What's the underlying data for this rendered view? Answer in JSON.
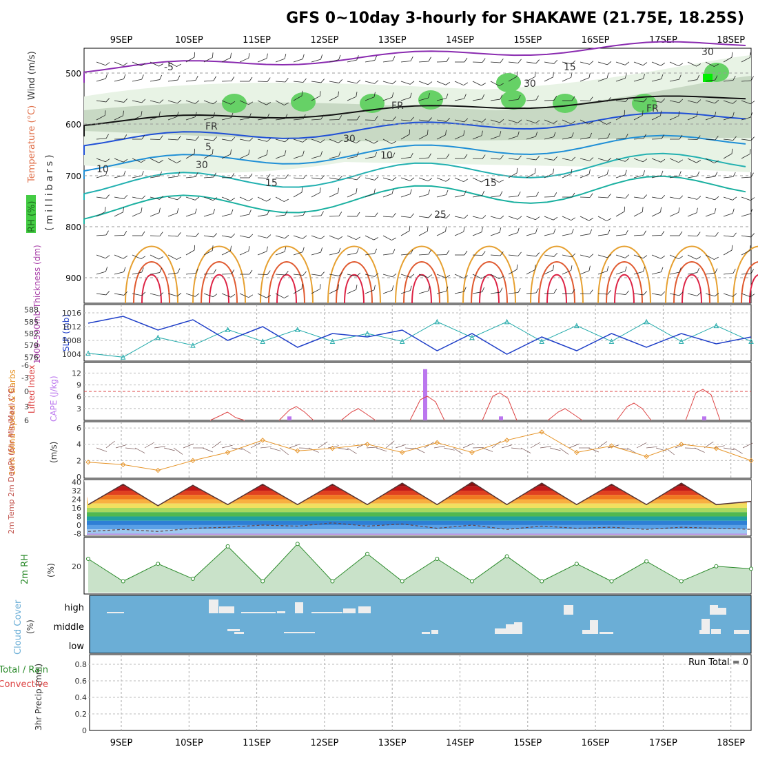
{
  "title": "GFS 0~10day 3-hourly for SHAKAWE (21.75E, 18.25S)",
  "days": [
    "9SEP",
    "10SEP",
    "11SEP",
    "12SEP",
    "13SEP",
    "14SEP",
    "15SEP",
    "16SEP",
    "17SEP",
    "18SEP"
  ],
  "colors": {
    "frame": "#000000",
    "grid": "#9a9a9a",
    "rh_green": "#44cc44",
    "rh_dark": "#888888",
    "purple": "#8a2bb0",
    "blue": "#1f4fd6",
    "cyan": "#1ab0b0",
    "orange": "#e6a030",
    "red": "#dd2244",
    "slp": "#1f3fc8",
    "thick": "#22aaaa",
    "cape": "#bb77ee",
    "lifted": "#dd4444",
    "wind": "#e6952a",
    "rh2m": "#2a8a2a",
    "cloud_bg": "#6baed6",
    "cloud_bar": "#eeeeee"
  },
  "panels": {
    "upper": {
      "labels": [
        "RH (%)",
        "Temperature (°C)",
        "Wind (m/s)",
        "(millibars)"
      ],
      "ticks": [
        "500",
        "600",
        "700",
        "800",
        "900"
      ],
      "contour_labels": [
        "-5",
        "15",
        "5",
        "10",
        "10",
        "15",
        "15",
        "25",
        "FR",
        "FR",
        "FR",
        "30",
        "30",
        "30",
        "30"
      ]
    },
    "slp": {
      "label_left": "1000-500mb Thickness (dm)",
      "label_right": "SLP (mb)",
      "ticks_left": [
        "588",
        "585",
        "582",
        "579",
        "576"
      ],
      "ticks_right": [
        "1016",
        "1012",
        "1008",
        "1004"
      ]
    },
    "cape": {
      "label_left": "Lifted Index",
      "label_right": "CAPE (J/kg)",
      "ticks_left": [
        "-6",
        "-3",
        "0",
        "3",
        "6"
      ],
      "ticks_right": [
        "12",
        "9",
        "6",
        "3"
      ]
    },
    "wind10": {
      "label": "10m Wind Speed & Barbs",
      "unit": "(m/s)",
      "ticks": [
        "6",
        "4",
        "2",
        "0"
      ]
    },
    "temp2m": {
      "label": "2m Temp 2m DewPt (6hr Min/Max) (°C)",
      "ticks": [
        "40",
        "32",
        "24",
        "16",
        "8",
        "0",
        "-8"
      ]
    },
    "rh2m": {
      "label": "2m RH",
      "unit": "(%)",
      "ticks": [
        "20"
      ]
    },
    "cloud": {
      "label": "Cloud Cover",
      "unit": "(%)",
      "ticks": [
        "high",
        "middle",
        "low"
      ]
    },
    "precip": {
      "label": "3hr Precip (mm)",
      "legend": [
        "Total / Rain",
        "Convective"
      ],
      "ticks": [
        "0.8",
        "0.6",
        "0.4",
        "0.2",
        "0"
      ],
      "run_total": "Run Total = 0"
    }
  },
  "chart_data": [
    {
      "type": "line",
      "title": "SLP and 1000-500mb Thickness",
      "x": [
        "9SEP 00",
        "9SEP 12",
        "10SEP 00",
        "10SEP 12",
        "11SEP 00",
        "11SEP 12",
        "12SEP 00",
        "12SEP 12",
        "13SEP 00",
        "13SEP 12",
        "14SEP 00",
        "14SEP 12",
        "15SEP 00",
        "15SEP 12",
        "16SEP 00",
        "16SEP 12",
        "17SEP 00",
        "17SEP 12",
        "18SEP 00",
        "18SEP 12"
      ],
      "series": [
        {
          "name": "SLP (mb)",
          "values": [
            1013,
            1015,
            1011,
            1014,
            1008,
            1012,
            1006,
            1010,
            1009,
            1011,
            1005,
            1010,
            1004,
            1009,
            1005,
            1010,
            1006,
            1010,
            1007,
            1009
          ]
        },
        {
          "name": "1000-500mb Thickness (dm)",
          "values": [
            577,
            576,
            581,
            579,
            583,
            580,
            583,
            580,
            582,
            580,
            585,
            581,
            585,
            580,
            584,
            580,
            585,
            580,
            584,
            580
          ]
        }
      ]
    },
    {
      "type": "bar",
      "title": "CAPE",
      "x": [
        "11SEP 12",
        "13SEP 12",
        "14SEP 15",
        "17SEP 15"
      ],
      "series": [
        {
          "name": "CAPE (J/kg)",
          "values": [
            1,
            13,
            1,
            1
          ]
        }
      ]
    },
    {
      "type": "line",
      "title": "10m Wind Speed",
      "x": [
        "9SEP 00",
        "9SEP 12",
        "10SEP 00",
        "10SEP 12",
        "11SEP 00",
        "11SEP 12",
        "12SEP 00",
        "12SEP 12",
        "13SEP 00",
        "13SEP 12",
        "14SEP 00",
        "14SEP 12",
        "15SEP 00",
        "15SEP 12",
        "16SEP 00",
        "16SEP 12",
        "17SEP 00",
        "17SEP 12",
        "18SEP 00",
        "18SEP 12"
      ],
      "series": [
        {
          "name": "Speed (m/s)",
          "values": [
            1.8,
            1.5,
            0.8,
            2.0,
            3.0,
            4.5,
            3.2,
            3.5,
            4.0,
            3.0,
            4.2,
            3.0,
            4.5,
            5.5,
            3.0,
            3.8,
            2.5,
            4.0,
            3.5,
            2.0
          ]
        }
      ]
    },
    {
      "type": "line",
      "title": "2m RH",
      "x": [
        "9SEP 00",
        "9SEP 12",
        "10SEP 00",
        "10SEP 12",
        "11SEP 00",
        "11SEP 12",
        "12SEP 00",
        "12SEP 12",
        "13SEP 00",
        "13SEP 12",
        "14SEP 00",
        "14SEP 12",
        "15SEP 00",
        "15SEP 12",
        "16SEP 00",
        "16SEP 12",
        "17SEP 00",
        "17SEP 12",
        "18SEP 00",
        "18SEP 12"
      ],
      "series": [
        {
          "name": "2m RH (%)",
          "values": [
            26,
            8,
            22,
            10,
            36,
            8,
            38,
            8,
            30,
            8,
            26,
            8,
            28,
            8,
            22,
            8,
            24,
            8,
            20,
            18
          ]
        }
      ]
    },
    {
      "type": "line",
      "title": "2m Temp",
      "x": [
        "9SEP 00",
        "9SEP 12",
        "10SEP 00",
        "10SEP 12",
        "11SEP 00",
        "11SEP 12",
        "12SEP 00",
        "12SEP 12",
        "13SEP 00",
        "13SEP 12",
        "14SEP 00",
        "14SEP 12",
        "15SEP 00",
        "15SEP 12",
        "16SEP 00",
        "16SEP 12",
        "17SEP 00",
        "17SEP 12",
        "18SEP 00",
        "18SEP 12"
      ],
      "series": [
        {
          "name": "2m Temp (°C)",
          "values": [
            19,
            38,
            18,
            37,
            19,
            38,
            19,
            38,
            19,
            39,
            19,
            40,
            19,
            39,
            19,
            38,
            19,
            39,
            19,
            22
          ]
        },
        {
          "name": "2m DewPt (°C)",
          "values": [
            -6,
            -4,
            -6,
            -3,
            -2,
            0,
            -1,
            2,
            -1,
            1,
            -3,
            0,
            -4,
            -1,
            -3,
            -2,
            -4,
            -2,
            -3,
            -4
          ]
        }
      ]
    },
    {
      "type": "table",
      "title": "3hr Precip",
      "series": [
        {
          "name": "3hr Precip (mm)",
          "values": [
            0,
            0,
            0,
            0,
            0,
            0,
            0,
            0,
            0,
            0
          ]
        }
      ]
    }
  ]
}
